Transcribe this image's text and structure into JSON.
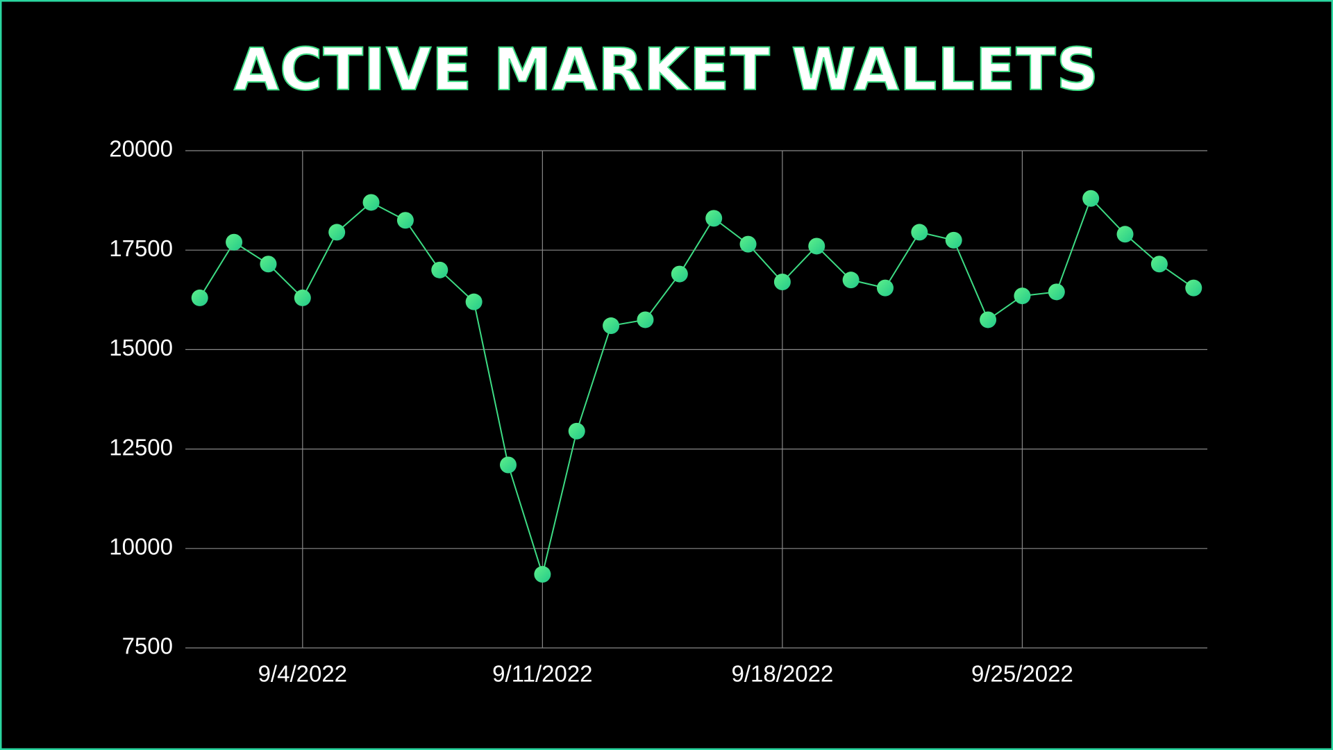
{
  "chart_data": {
    "type": "line",
    "title": "ACTIVE MARKET WALLETS",
    "x": [
      "9/1/2022",
      "9/2/2022",
      "9/3/2022",
      "9/4/2022",
      "9/5/2022",
      "9/6/2022",
      "9/7/2022",
      "9/8/2022",
      "9/9/2022",
      "9/10/2022",
      "9/11/2022",
      "9/12/2022",
      "9/13/2022",
      "9/14/2022",
      "9/15/2022",
      "9/16/2022",
      "9/17/2022",
      "9/18/2022",
      "9/19/2022",
      "9/20/2022",
      "9/21/2022",
      "9/22/2022",
      "9/23/2022",
      "9/24/2022",
      "9/25/2022",
      "9/26/2022",
      "9/27/2022",
      "9/28/2022",
      "9/29/2022",
      "9/30/2022"
    ],
    "series": [
      {
        "color": "#3ddc84",
        "values": [
          16300,
          17700,
          17150,
          16300,
          17950,
          18700,
          18250,
          17000,
          16200,
          12100,
          9350,
          12950,
          15600,
          15750,
          16900,
          18300,
          17650,
          16700,
          17600,
          16750,
          16550,
          17950,
          17750,
          15750,
          16350,
          16450,
          18800,
          17900,
          17150,
          16550
        ]
      }
    ],
    "xticks": [
      "9/4/2022",
      "9/11/2022",
      "9/18/2022",
      "9/25/2022"
    ],
    "ylim": [
      7500,
      20000
    ],
    "yticks": [
      7500,
      10000,
      12500,
      15000,
      17500,
      20000
    ],
    "grid": true
  }
}
